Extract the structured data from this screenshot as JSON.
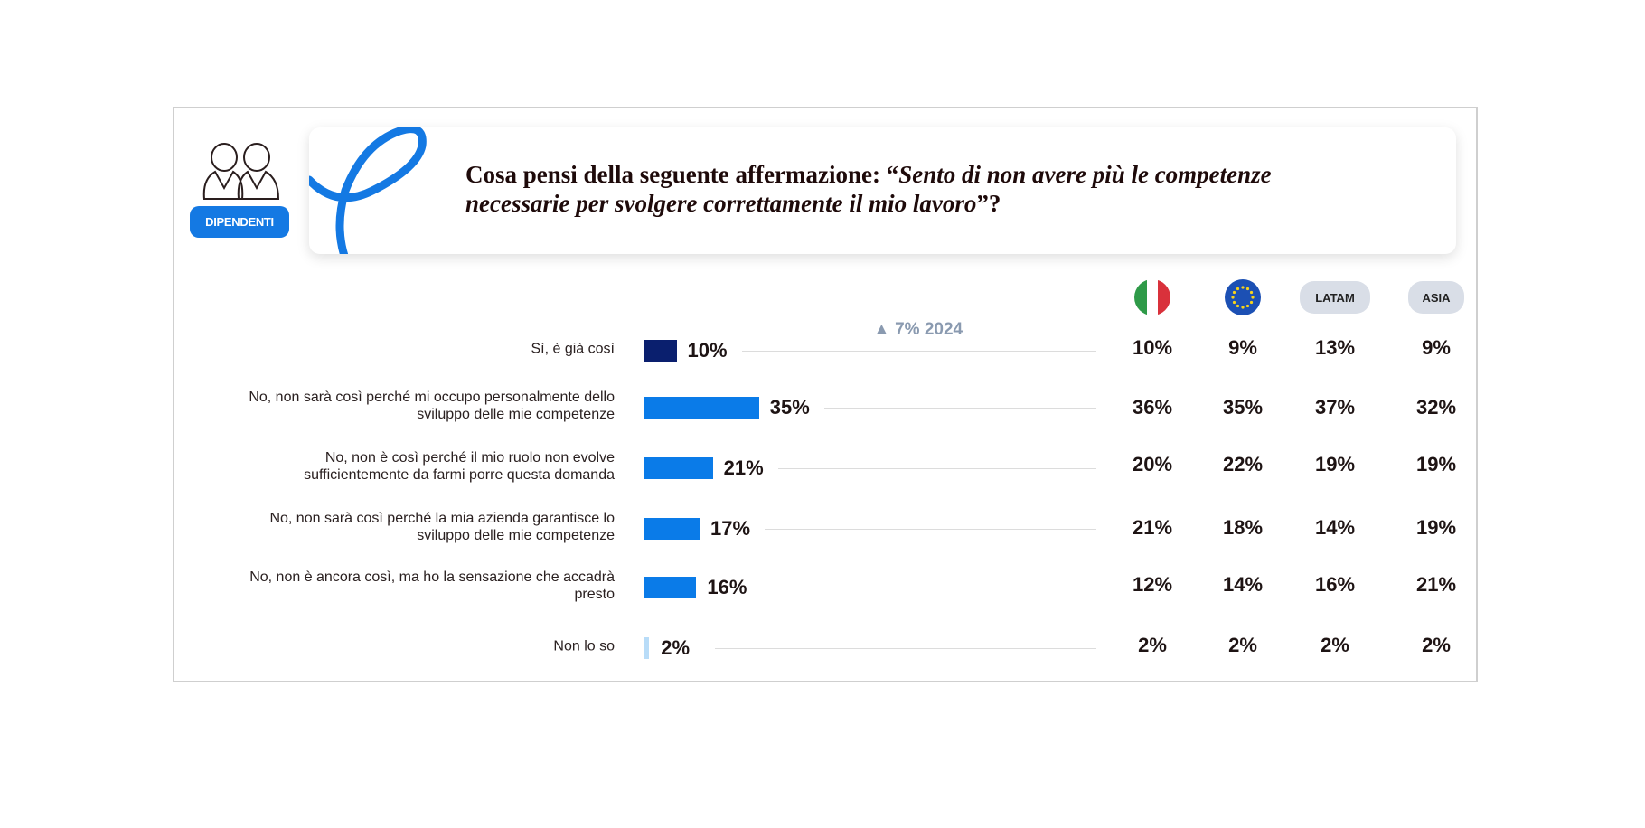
{
  "badge": "DIPENDENTI",
  "question": {
    "prefix": "Cosa pensi della seguente affermazione: “",
    "quote": "Sento di non avere più le competenze necessarie per svolgere correttamente il mio lavoro",
    "suffix": "”?"
  },
  "note": "▲ 7% 2024",
  "colors": {
    "highlight": "#0a1f6e",
    "bar": "#0a7be8",
    "minor": "#b8dcf8",
    "badge": "#1479e3"
  },
  "chart_data": {
    "type": "bar",
    "orientation": "horizontal",
    "categories": [
      "Sì, è già così",
      "No, non sarà così perché mi occupo personalmente dello sviluppo delle mie competenze",
      "No, non è così perché il mio ruolo non evolve sufficientemente da farmi porre questa domanda",
      "No, non sarà così perché la mia azienda garantisce lo sviluppo delle mie competenze",
      "No, non è ancora così, ma ho la sensazione che accadrà presto",
      "Non lo so"
    ],
    "values": [
      10,
      35,
      21,
      17,
      16,
      2
    ],
    "value_labels": [
      "10%",
      "35%",
      "21%",
      "17%",
      "16%",
      "2%"
    ],
    "comparison_columns": [
      {
        "header": "",
        "icon": "italy-flag-icon",
        "values": [
          "10%",
          "36%",
          "20%",
          "21%",
          "12%",
          "2%"
        ]
      },
      {
        "header": "",
        "icon": "eu-flag-icon",
        "values": [
          "9%",
          "35%",
          "22%",
          "18%",
          "14%",
          "2%"
        ]
      },
      {
        "header": "LATAM",
        "values": [
          "13%",
          "37%",
          "19%",
          "14%",
          "16%",
          "2%"
        ]
      },
      {
        "header": "ASIA",
        "values": [
          "9%",
          "32%",
          "19%",
          "19%",
          "21%",
          "2%"
        ]
      }
    ]
  }
}
